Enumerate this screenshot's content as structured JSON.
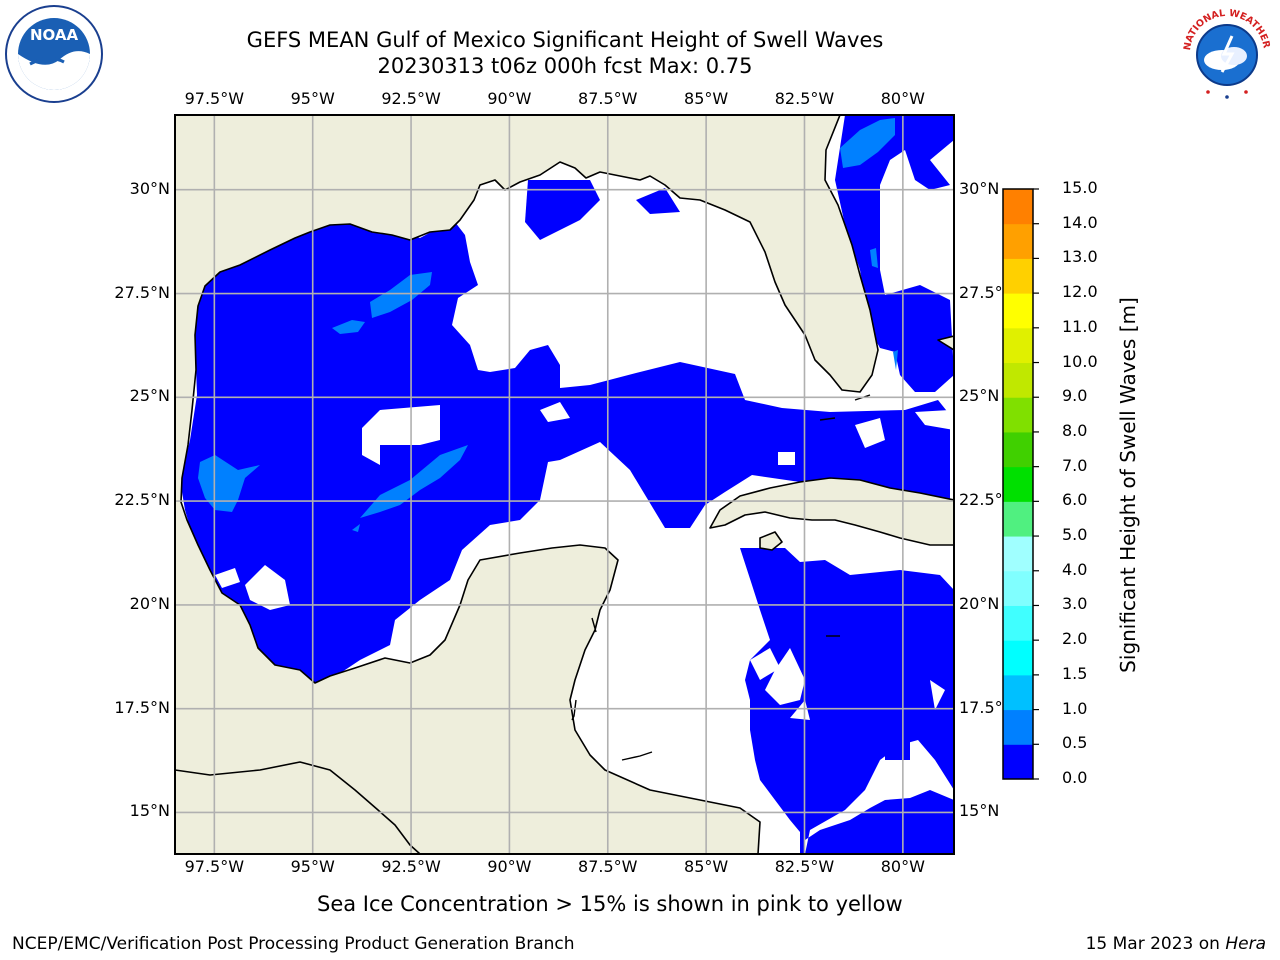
{
  "title": {
    "line1": "GEFS MEAN Gulf of Mexico Significant Height of Swell Waves",
    "line2": "20230313 t06z 000h fcst   Max: 0.75"
  },
  "logos": {
    "left": {
      "name": "noaa-logo",
      "text": "NOAA"
    },
    "right": {
      "name": "nws-logo",
      "text": "NATIONAL WEATHER SERVICE"
    }
  },
  "map": {
    "projection": "plate carree",
    "extent": {
      "lon_min": -98.5,
      "lon_max": -78.7,
      "lat_min": 14.0,
      "lat_max": 31.8
    },
    "grid": true,
    "lon_ticks": [
      {
        "value": -97.5,
        "label": "97.5°W"
      },
      {
        "value": -95,
        "label": "95°W"
      },
      {
        "value": -92.5,
        "label": "92.5°W"
      },
      {
        "value": -90,
        "label": "90°W"
      },
      {
        "value": -87.5,
        "label": "87.5°W"
      },
      {
        "value": -85,
        "label": "85°W"
      },
      {
        "value": -82.5,
        "label": "82.5°W"
      },
      {
        "value": -80,
        "label": "80°W"
      }
    ],
    "lat_ticks": [
      {
        "value": 30,
        "label": "30°N"
      },
      {
        "value": 27.5,
        "label": "27.5°N"
      },
      {
        "value": 25,
        "label": "25°N"
      },
      {
        "value": 22.5,
        "label": "22.5°N"
      },
      {
        "value": 20,
        "label": "20°N"
      },
      {
        "value": 17.5,
        "label": "17.5°N"
      },
      {
        "value": 15,
        "label": "15°N"
      }
    ],
    "colors": {
      "land": "#eeeedc",
      "ocean_below": "#ffffff",
      "coast": "#000000",
      "grid": "#b0b0b0"
    }
  },
  "colorbar": {
    "title": "Significant Height of Swell Waves [m]",
    "levels": [
      0.0,
      0.5,
      1.0,
      1.5,
      2.0,
      3.0,
      4.0,
      5.0,
      6.0,
      7.0,
      8.0,
      9.0,
      10.0,
      11.0,
      12.0,
      13.0,
      14.0,
      15.0
    ],
    "labels": [
      "0.0",
      "0.5",
      "1.0",
      "1.5",
      "2.0",
      "3.0",
      "4.0",
      "5.0",
      "6.0",
      "7.0",
      "8.0",
      "9.0",
      "10.0",
      "11.0",
      "12.0",
      "13.0",
      "14.0",
      "15.0"
    ],
    "colors": [
      "#0000ff",
      "#0080ff",
      "#00c0ff",
      "#00ffff",
      "#40ffff",
      "#80ffff",
      "#a0ffff",
      "#50f080",
      "#00e000",
      "#40d000",
      "#80e000",
      "#c0e800",
      "#e0f000",
      "#ffff00",
      "#ffd000",
      "#ffa000",
      "#ff8000",
      "#ff5000",
      "#ff2000",
      "#ff0000"
    ]
  },
  "note": "Sea Ice Concentration > 15% is shown in pink to yellow",
  "footer": {
    "left": "NCEP/EMC/Verification Post Processing Product Generation Branch",
    "right_prefix": "15 Mar 2023 on ",
    "right_italic": "Hera"
  }
}
